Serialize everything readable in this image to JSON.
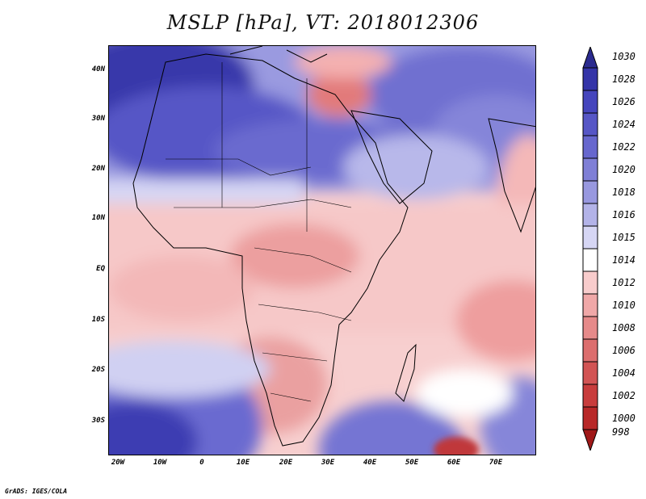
{
  "map": {
    "title": "MSLP [hPa], VT: 2018012306",
    "footer": "GrADS: IGES/COLA",
    "lat_labels": [
      "40N",
      "30N",
      "20N",
      "10N",
      "EQ",
      "10S",
      "20S",
      "30S"
    ],
    "lon_labels": [
      "20W",
      "10W",
      "0",
      "10E",
      "20E",
      "30E",
      "40E",
      "50E",
      "60E",
      "70E"
    ]
  },
  "colorbar": {
    "levels": [
      "1030",
      "1028",
      "1026",
      "1024",
      "1022",
      "1020",
      "1018",
      "1016",
      "1015",
      "1014",
      "1012",
      "1010",
      "1008",
      "1006",
      "1004",
      "1002",
      "1000",
      "998"
    ],
    "colors": [
      "#2b2b8f",
      "#3434a8",
      "#4545bd",
      "#5656c6",
      "#6767ce",
      "#7f7fd6",
      "#9898df",
      "#b3b3e8",
      "#d6d6f4",
      "#ffffff",
      "#f8cccc",
      "#f0a8a8",
      "#e68a8a",
      "#dc6e6e",
      "#d25454",
      "#c83c3c",
      "#b82828",
      "#a01818"
    ]
  }
}
